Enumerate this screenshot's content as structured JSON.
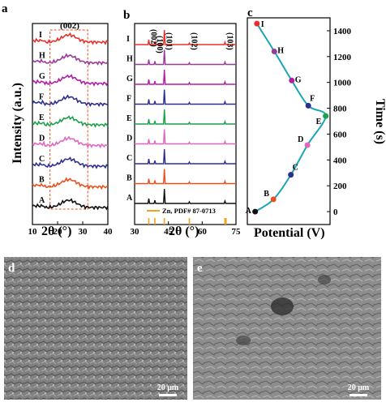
{
  "panels": {
    "a": {
      "letter": "a"
    },
    "b": {
      "letter": "b"
    },
    "c": {
      "letter": "c"
    },
    "d": {
      "letter": "d",
      "scale_bar": "20 μm"
    },
    "e": {
      "letter": "e",
      "scale_bar": "20 μm"
    }
  },
  "colors": {
    "I": "#e8302a",
    "H": "#9a3a9a",
    "G": "#b01fa6",
    "F": "#2c2f8e",
    "E": "#1aa14a",
    "D": "#e066c0",
    "C": "#2c2f8e",
    "B": "#e8501c",
    "A": "#111111",
    "time_curve": "#1aa5b5",
    "dashed_box": "#e8501c",
    "ref_ticks": "#f2a11c"
  },
  "chart_data": [
    {
      "panel": "a",
      "type": "line",
      "xlabel": "2θ (°)",
      "ylabel": "Intensity (a.u.)",
      "xlim": [
        10,
        40
      ],
      "xticks": [
        10,
        20,
        30,
        40
      ],
      "annotation": "(002)",
      "highlight_range": [
        17,
        32
      ],
      "series": [
        {
          "name": "A",
          "peak_x": 24.5
        },
        {
          "name": "B",
          "peak_x": 24.5
        },
        {
          "name": "C",
          "peak_x": 24.5
        },
        {
          "name": "D",
          "peak_x": 24.5
        },
        {
          "name": "E",
          "peak_x": 24.5
        },
        {
          "name": "F",
          "peak_x": 24.5
        },
        {
          "name": "G",
          "peak_x": 24.5
        },
        {
          "name": "H",
          "peak_x": 24.5
        },
        {
          "name": "I",
          "peak_x": 24.5
        }
      ]
    },
    {
      "panel": "b",
      "type": "line",
      "xlabel": "2θ (°)",
      "xlim": [
        30,
        75
      ],
      "xticks": [
        30,
        45,
        60,
        75
      ],
      "peaks": [
        {
          "x": 36.3,
          "label": "(002)"
        },
        {
          "x": 39.0,
          "label": "(100)"
        },
        {
          "x": 43.2,
          "label": "(101)"
        },
        {
          "x": 54.3,
          "label": "(102)"
        },
        {
          "x": 70.1,
          "label": "(103)"
        }
      ],
      "reference": {
        "label": "Zn, PDF# 87-0713",
        "ticks_x": [
          36.3,
          39.0,
          43.2,
          54.3,
          70.1,
          70.6
        ]
      },
      "series_names": [
        "A",
        "B",
        "C",
        "D",
        "E",
        "F",
        "G",
        "H",
        "I"
      ]
    },
    {
      "panel": "c",
      "type": "scatter",
      "xlabel": "Potential (V)",
      "ylabel": "Time (s)",
      "xlim": [
        0.0,
        1.9
      ],
      "ylim": [
        -100,
        1500
      ],
      "yticks": [
        0,
        200,
        400,
        600,
        800,
        1000,
        1200,
        1400
      ],
      "points": [
        {
          "label": "A",
          "x": 0.18,
          "y": 0
        },
        {
          "label": "B",
          "x": 0.6,
          "y": 95
        },
        {
          "label": "C",
          "x": 1.0,
          "y": 285
        },
        {
          "label": "D",
          "x": 1.38,
          "y": 515
        },
        {
          "label": "E",
          "x": 1.8,
          "y": 740
        },
        {
          "label": "F",
          "x": 1.4,
          "y": 820
        },
        {
          "label": "G",
          "x": 1.02,
          "y": 1015
        },
        {
          "label": "H",
          "x": 0.62,
          "y": 1240
        },
        {
          "label": "I",
          "x": 0.22,
          "y": 1455
        }
      ]
    }
  ]
}
